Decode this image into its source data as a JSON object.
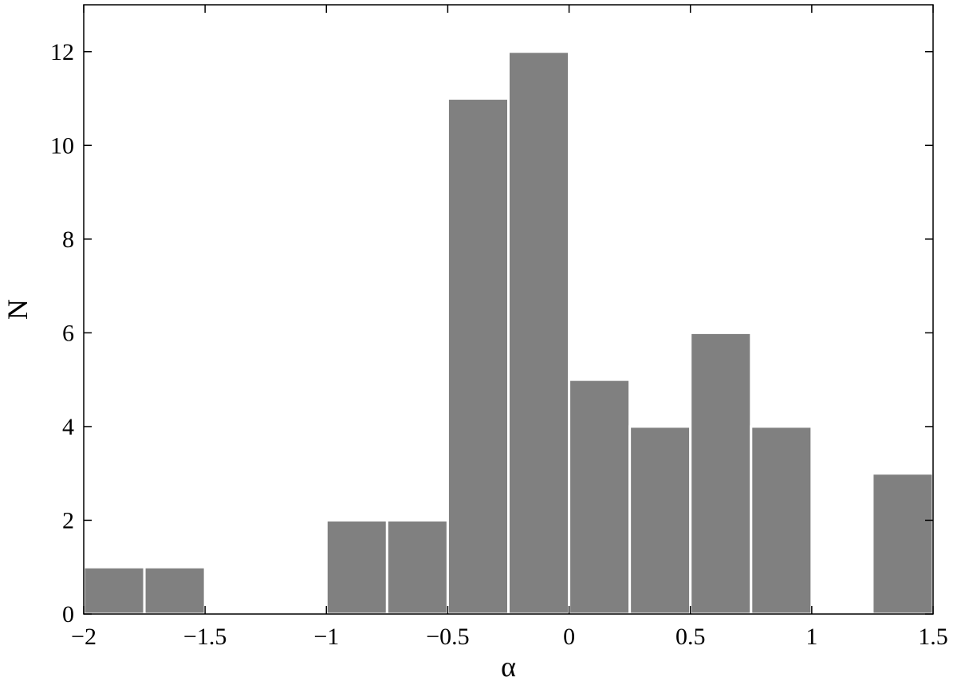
{
  "chart_data": {
    "type": "bar",
    "title": "",
    "xlabel": "α",
    "ylabel": "N",
    "xlim": [
      -2,
      1.5
    ],
    "ylim": [
      0,
      13
    ],
    "bin_width": 0.25,
    "bins": [
      {
        "x0": -2.0,
        "x1": -1.75,
        "count": 1
      },
      {
        "x0": -1.75,
        "x1": -1.5,
        "count": 1
      },
      {
        "x0": -1.5,
        "x1": -1.25,
        "count": 0
      },
      {
        "x0": -1.25,
        "x1": -1.0,
        "count": 0
      },
      {
        "x0": -1.0,
        "x1": -0.75,
        "count": 2
      },
      {
        "x0": -0.75,
        "x1": -0.5,
        "count": 2
      },
      {
        "x0": -0.5,
        "x1": -0.25,
        "count": 11
      },
      {
        "x0": -0.25,
        "x1": 0.0,
        "count": 12
      },
      {
        "x0": 0.0,
        "x1": 0.25,
        "count": 5
      },
      {
        "x0": 0.25,
        "x1": 0.5,
        "count": 4
      },
      {
        "x0": 0.5,
        "x1": 0.75,
        "count": 6
      },
      {
        "x0": 0.75,
        "x1": 1.0,
        "count": 4
      },
      {
        "x0": 1.0,
        "x1": 1.25,
        "count": 0
      },
      {
        "x0": 1.25,
        "x1": 1.5,
        "count": 3
      }
    ],
    "xticks": [
      {
        "value": -2,
        "label": "−2"
      },
      {
        "value": -1.5,
        "label": "−1.5"
      },
      {
        "value": -1,
        "label": "−1"
      },
      {
        "value": -0.5,
        "label": "−0.5"
      },
      {
        "value": 0,
        "label": "0"
      },
      {
        "value": 0.5,
        "label": "0.5"
      },
      {
        "value": 1,
        "label": "1"
      },
      {
        "value": 1.5,
        "label": "1.5"
      }
    ],
    "yticks": [
      {
        "value": 0,
        "label": "0"
      },
      {
        "value": 2,
        "label": "2"
      },
      {
        "value": 4,
        "label": "4"
      },
      {
        "value": 6,
        "label": "6"
      },
      {
        "value": 8,
        "label": "8"
      },
      {
        "value": 10,
        "label": "10"
      },
      {
        "value": 12,
        "label": "12"
      }
    ],
    "grid": false,
    "legend": "none",
    "bar_color": "#808080",
    "bar_edge_color": "#ffffff"
  }
}
